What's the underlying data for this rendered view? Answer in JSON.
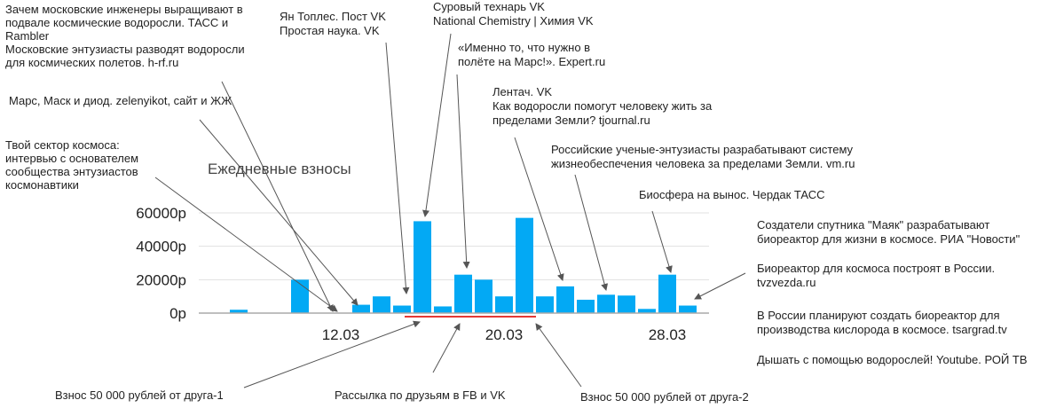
{
  "chart_data": {
    "type": "bar",
    "title": "Ежедневные взносы",
    "ylim": [
      0,
      65000
    ],
    "y_ticks": [
      0,
      20000,
      40000,
      60000
    ],
    "y_tick_labels": [
      "0р",
      "20000р",
      "40000р",
      "60000р"
    ],
    "x_ticks": [
      {
        "index": 5,
        "label": "12.03"
      },
      {
        "index": 13,
        "label": "20.03"
      },
      {
        "index": 21,
        "label": "28.03"
      }
    ],
    "values": [
      2000,
      0,
      0,
      20000,
      0,
      0,
      5000,
      10000,
      4500,
      55000,
      4000,
      23000,
      20000,
      10000,
      57000,
      10000,
      16000,
      8000,
      11000,
      10500,
      2500,
      23000,
      4500
    ],
    "colors": {
      "bar": "#03a9f4",
      "grid": "#e0e0e0",
      "axis": "#aaaaaa",
      "highlight": "#e53935",
      "arrow": "#555555"
    },
    "highlight_range": [
      9,
      14
    ],
    "annotations": [
      {
        "lines": [
          "Зачем московские инженеры выращивают в",
          "подвале космические водоросли. ТАСС и",
          "Rambler",
          "Московские энтузиасты разводят водоросли",
          "для космических полетов. h-rf.ru"
        ],
        "bar": 6
      },
      {
        "lines": [
          "Марс, Маск и диод. zelenyikot, сайт и ЖЖ"
        ],
        "bar": 7
      },
      {
        "lines": [
          "Твой сектор космоса:",
          "интервью с основателем",
          "сообщества энтузиастов",
          "космонавтики"
        ],
        "bar": 6
      },
      {
        "lines": [
          "Ян Топлес. Пост VK",
          "Простая наука. VK"
        ],
        "bar": 8
      },
      {
        "lines": [
          "Суровый технарь VK",
          "National Chemistry | Химия VK"
        ],
        "bar": 9
      },
      {
        "lines": [
          "«Именно то, что нужно в",
          "полёте на Марс!». Expert.ru"
        ],
        "bar": 11
      },
      {
        "lines": [
          "Лентач. VK",
          "Как водоросли помогут человеку жить за",
          "пределами Земли? tjournal.ru"
        ],
        "bar": 16
      },
      {
        "lines": [
          "Российские ученые-энтузиасты разрабатывают систему",
          "жизнеобеспечения человека за пределами Земли. vm.ru"
        ],
        "bar": 18
      },
      {
        "lines": [
          "Биосфера на вынос. Чердак ТАСС"
        ],
        "bar": null
      },
      {
        "lines": [
          "Создатели спутника \"Маяк\" разрабатывают",
          "биореактор для жизни в космосе. РИА \"Новости\""
        ],
        "bar": 21
      },
      {
        "lines": [
          "Биореактор для космоса построят в России.",
          "tvzvezda.ru"
        ],
        "bar": 22
      },
      {
        "lines": [
          "В России планируют создать биореактор для",
          "производства кислорода в космосе. tsargrad.tv"
        ],
        "bar": null
      },
      {
        "lines": [
          "Дышать с помощью водорослей! Youtube. РОЙ ТВ"
        ],
        "bar": null
      },
      {
        "lines": [
          "Взнос 50 000 рублей от друга-1"
        ],
        "bar": 9
      },
      {
        "lines": [
          "Рассылка по друзьям в FB и VK"
        ],
        "bar": 11
      },
      {
        "lines": [
          "Взнос 50 000 рублей от друга-2"
        ],
        "bar": 14
      }
    ]
  }
}
